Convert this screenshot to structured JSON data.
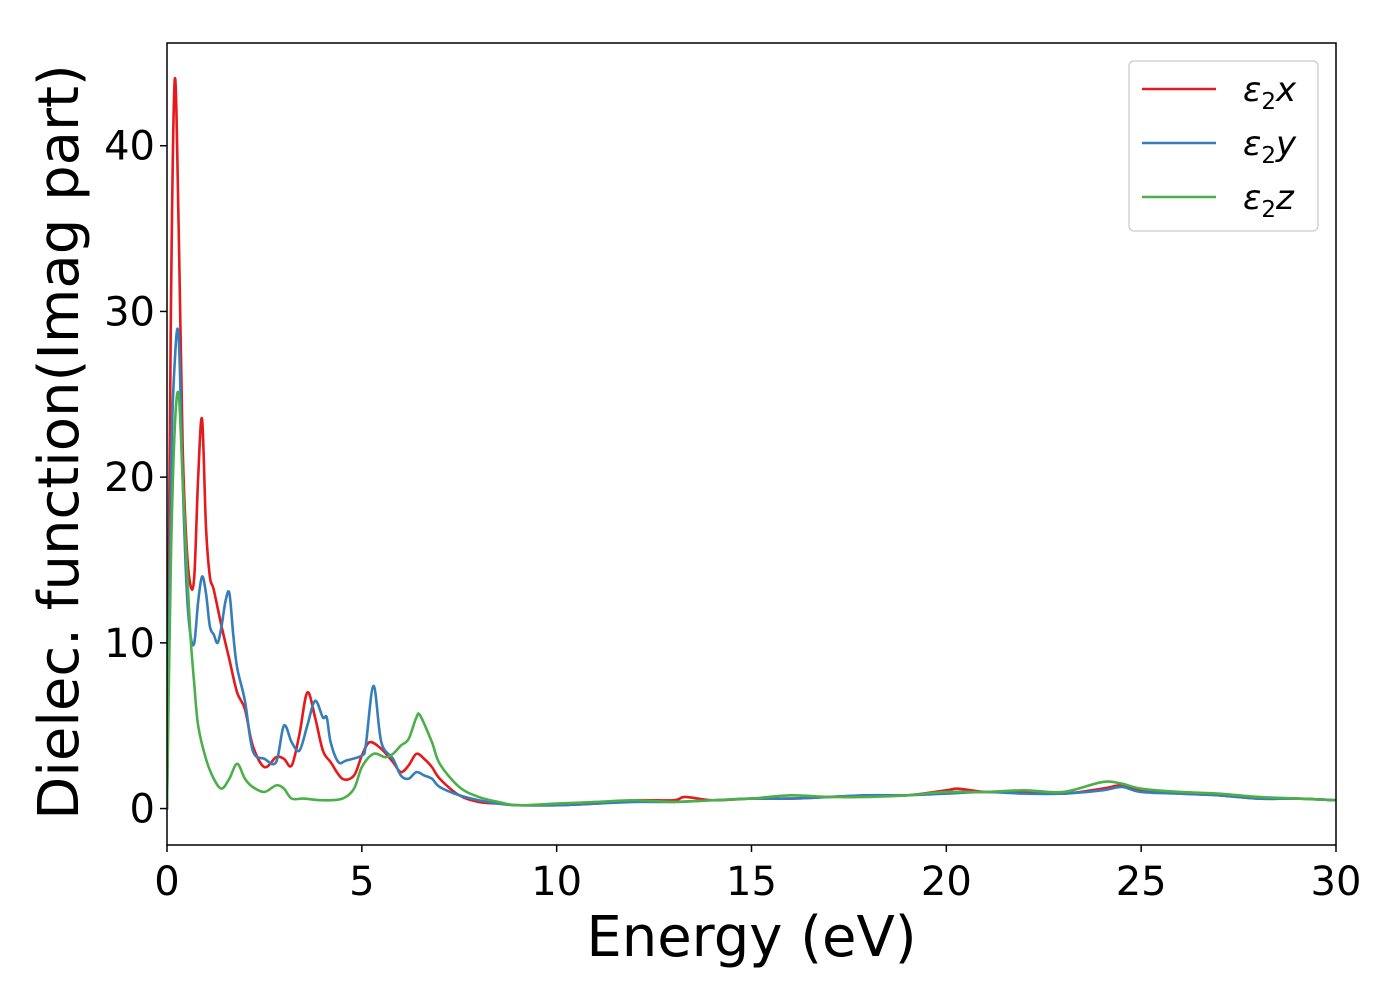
{
  "chart_data": {
    "type": "line",
    "title": "",
    "xlabel": "Energy (eV)",
    "ylabel": "Dielec. function(Imag part)",
    "xlim": [
      0,
      30
    ],
    "ylim": [
      -2.2,
      46.2
    ],
    "xticks": [
      0,
      5,
      10,
      15,
      20,
      25,
      30
    ],
    "yticks": [
      0,
      10,
      20,
      30,
      40
    ],
    "grid": false,
    "legend_position": "top-right",
    "series": [
      {
        "name": "ε₂x",
        "legend_main": "ε",
        "legend_sub": "2",
        "legend_suffix": "x",
        "color": "#e41a1c",
        "x": [
          0.0,
          0.1,
          0.2,
          0.3,
          0.4,
          0.5,
          0.6,
          0.7,
          0.8,
          0.9,
          1.0,
          1.1,
          1.2,
          1.4,
          1.6,
          1.8,
          2.0,
          2.2,
          2.5,
          2.8,
          3.0,
          3.2,
          3.4,
          3.6,
          3.8,
          4.0,
          4.2,
          4.5,
          4.8,
          5.0,
          5.2,
          5.5,
          5.8,
          6.0,
          6.2,
          6.4,
          6.6,
          6.8,
          7.0,
          7.5,
          8.0,
          8.5,
          9.0,
          9.5,
          10.0,
          11.0,
          12.0,
          13.0,
          13.3,
          14.0,
          15.0,
          16.0,
          17.0,
          18.0,
          19.0,
          20.0,
          20.3,
          21.0,
          22.0,
          23.0,
          24.0,
          24.5,
          25.0,
          26.0,
          27.0,
          28.0,
          29.0,
          30.0
        ],
        "y": [
          0.0,
          30.0,
          44.0,
          35.0,
          22.0,
          16.0,
          13.5,
          14.0,
          20.0,
          23.5,
          17.0,
          14.0,
          13.2,
          11.0,
          9.0,
          7.0,
          6.0,
          3.8,
          2.5,
          3.1,
          3.0,
          2.6,
          4.5,
          7.0,
          5.5,
          3.5,
          2.8,
          1.8,
          2.0,
          3.2,
          4.0,
          3.6,
          2.8,
          2.2,
          2.6,
          3.3,
          3.0,
          2.5,
          1.8,
          0.8,
          0.4,
          0.3,
          0.2,
          0.2,
          0.2,
          0.3,
          0.5,
          0.5,
          0.7,
          0.5,
          0.6,
          0.6,
          0.7,
          0.8,
          0.8,
          1.1,
          1.2,
          1.0,
          1.0,
          0.9,
          1.2,
          1.4,
          1.1,
          0.9,
          0.8,
          0.6,
          0.6,
          0.5
        ]
      },
      {
        "name": "ε₂y",
        "legend_main": "ε",
        "legend_sub": "2",
        "legend_suffix": "y",
        "color": "#377eb8",
        "x": [
          0.0,
          0.1,
          0.2,
          0.3,
          0.4,
          0.5,
          0.6,
          0.7,
          0.8,
          0.9,
          1.0,
          1.1,
          1.2,
          1.3,
          1.4,
          1.5,
          1.6,
          1.7,
          1.8,
          2.0,
          2.2,
          2.5,
          2.8,
          3.0,
          3.2,
          3.4,
          3.6,
          3.8,
          4.0,
          4.1,
          4.2,
          4.4,
          4.6,
          5.0,
          5.1,
          5.3,
          5.5,
          5.8,
          6.0,
          6.2,
          6.4,
          6.6,
          6.8,
          7.0,
          7.5,
          8.0,
          8.5,
          9.0,
          10.0,
          11.0,
          12.0,
          13.0,
          14.0,
          15.0,
          16.0,
          17.0,
          18.0,
          19.0,
          20.0,
          21.0,
          22.0,
          23.0,
          24.0,
          24.5,
          25.0,
          26.0,
          27.0,
          28.0,
          29.0,
          30.0
        ],
        "y": [
          0.0,
          20.0,
          27.0,
          28.5,
          20.0,
          13.5,
          10.5,
          10.0,
          12.5,
          14.0,
          13.0,
          11.0,
          10.5,
          10.0,
          11.0,
          12.5,
          13.0,
          10.5,
          8.5,
          6.5,
          3.5,
          3.0,
          2.8,
          5.0,
          4.0,
          3.5,
          5.0,
          6.5,
          5.5,
          5.5,
          4.0,
          2.8,
          2.9,
          3.2,
          3.8,
          7.4,
          4.0,
          3.0,
          2.0,
          1.8,
          2.2,
          2.0,
          1.8,
          1.3,
          0.8,
          0.5,
          0.3,
          0.2,
          0.2,
          0.3,
          0.4,
          0.4,
          0.5,
          0.6,
          0.6,
          0.7,
          0.8,
          0.8,
          0.9,
          1.0,
          0.9,
          0.9,
          1.1,
          1.3,
          1.0,
          0.9,
          0.8,
          0.6,
          0.6,
          0.5
        ]
      },
      {
        "name": "ε₂z",
        "legend_main": "ε",
        "legend_sub": "2",
        "legend_suffix": "z",
        "color": "#4daf4a",
        "x": [
          0.0,
          0.1,
          0.2,
          0.3,
          0.4,
          0.5,
          0.6,
          0.7,
          0.8,
          1.0,
          1.2,
          1.4,
          1.6,
          1.8,
          2.0,
          2.2,
          2.5,
          2.8,
          3.0,
          3.2,
          3.5,
          4.0,
          4.5,
          4.8,
          5.0,
          5.3,
          5.6,
          5.8,
          6.0,
          6.2,
          6.4,
          6.5,
          6.8,
          7.0,
          7.5,
          8.0,
          8.5,
          9.0,
          10.0,
          11.0,
          12.0,
          13.0,
          14.0,
          15.0,
          16.0,
          17.0,
          18.0,
          19.0,
          20.0,
          21.0,
          22.0,
          23.0,
          24.0,
          24.5,
          25.0,
          26.0,
          27.0,
          28.0,
          29.0,
          30.0
        ],
        "y": [
          0.0,
          15.0,
          23.0,
          25.0,
          20.0,
          15.0,
          10.5,
          7.5,
          5.0,
          3.0,
          1.8,
          1.2,
          1.8,
          2.7,
          1.8,
          1.3,
          1.0,
          1.4,
          1.2,
          0.6,
          0.6,
          0.5,
          0.6,
          1.2,
          2.5,
          3.3,
          3.1,
          3.3,
          3.8,
          4.2,
          5.5,
          5.6,
          4.0,
          2.7,
          1.3,
          0.7,
          0.4,
          0.2,
          0.3,
          0.4,
          0.5,
          0.4,
          0.5,
          0.6,
          0.8,
          0.7,
          0.7,
          0.8,
          1.0,
          1.0,
          1.1,
          1.0,
          1.6,
          1.5,
          1.2,
          1.0,
          0.9,
          0.7,
          0.6,
          0.5
        ]
      }
    ]
  }
}
